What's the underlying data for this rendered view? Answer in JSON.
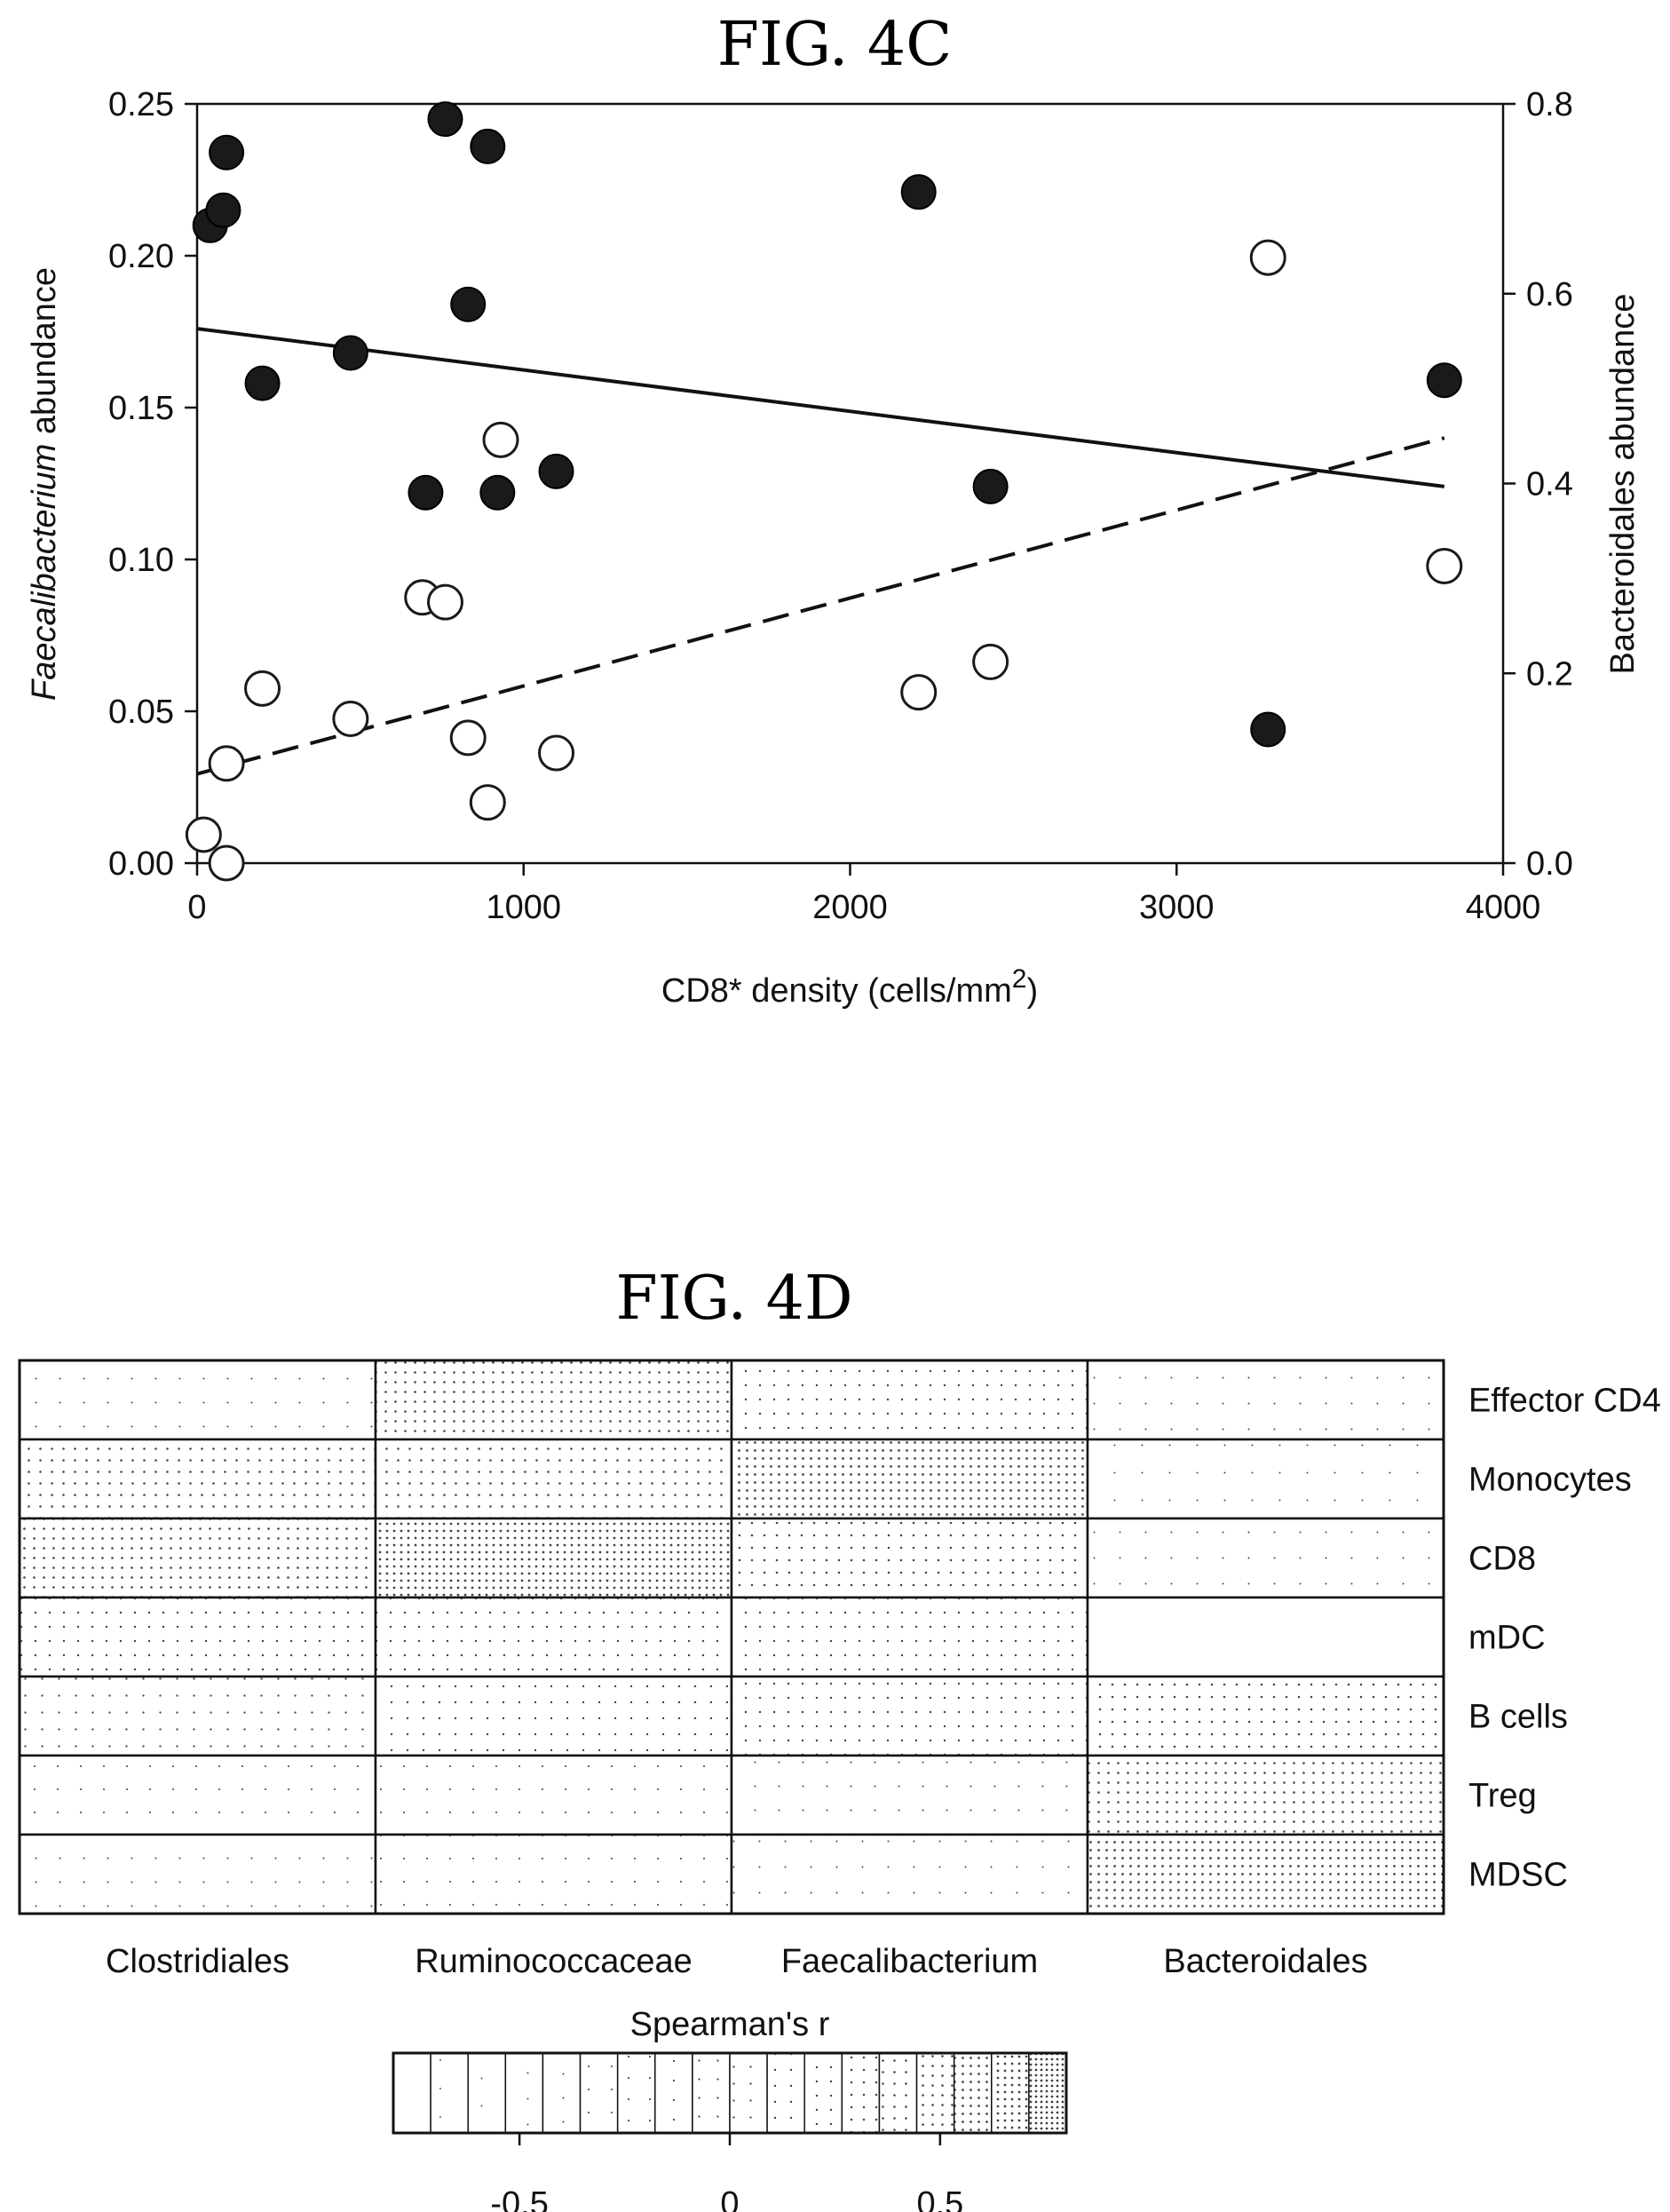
{
  "chart_data": [
    {
      "type": "scatter",
      "title": "FIG. 4C",
      "xlabel": "CD8* density (cells/mm",
      "xlabel_sup": "2",
      "xlabel_end": ")",
      "ylabel_italic": "Faecalibacterium",
      "ylabel_rest": " abundance",
      "y2label": "Bacteroidales abundance",
      "xlim": [
        0,
        4000
      ],
      "ylim": [
        0,
        0.25
      ],
      "y2lim": [
        0,
        0.8
      ],
      "xticks": [
        0,
        1000,
        2000,
        3000,
        4000
      ],
      "xtick_labels": [
        "0",
        "1000",
        "2000",
        "3000",
        "4000"
      ],
      "yticks": [
        0,
        0.05,
        0.1,
        0.15,
        0.2,
        0.25
      ],
      "ytick_labels": [
        "0.00",
        "0.05",
        "0.10",
        "0.15",
        "0.20",
        "0.25"
      ],
      "y2ticks": [
        0,
        0.2,
        0.4,
        0.6,
        0.8
      ],
      "y2tick_labels": [
        "0.0",
        "0.2",
        "0.4",
        "0.6",
        "0.8"
      ],
      "grid": false,
      "series": [
        {
          "marker": "filled",
          "axis": "left",
          "color": "#1a1a1a",
          "x": [
            40,
            80,
            90,
            200,
            470,
            700,
            760,
            830,
            890,
            920,
            1100,
            2210,
            2430,
            3280,
            3820
          ],
          "y": [
            0.21,
            0.215,
            0.234,
            0.158,
            0.168,
            0.122,
            0.245,
            0.184,
            0.236,
            0.122,
            0.129,
            0.221,
            0.124,
            0.044,
            0.159
          ]
        },
        {
          "marker": "open",
          "axis": "right",
          "color": "#1a1a1a",
          "x": [
            20,
            90,
            90,
            200,
            470,
            690,
            760,
            830,
            890,
            930,
            1100,
            2210,
            2430,
            3280,
            3820
          ],
          "y": [
            0.03,
            0.0,
            0.105,
            0.184,
            0.152,
            0.28,
            0.275,
            0.132,
            0.064,
            0.446,
            0.116,
            0.18,
            0.212,
            0.638,
            0.313
          ]
        }
      ],
      "trendlines": [
        {
          "style": "solid",
          "axis": "left",
          "x": [
            0,
            3820
          ],
          "y": [
            0.176,
            0.124
          ]
        },
        {
          "style": "dashed",
          "axis": "right",
          "x": [
            0,
            3820
          ],
          "y": [
            0.094,
            0.448
          ]
        }
      ]
    },
    {
      "type": "heatmap",
      "title": "FIG. 4D",
      "columns": [
        "Clostridiales",
        "Ruminococcaceae",
        "Faecalibacterium",
        "Bacteroidales"
      ],
      "rows": [
        "Effector CD4",
        "Monocytes",
        "CD8",
        "mDC",
        "B cells",
        "Treg",
        "MDSC"
      ],
      "values": [
        [
          -0.45,
          0.5,
          0.2,
          -0.55
        ],
        [
          0.45,
          0.4,
          0.6,
          -0.6
        ],
        [
          0.5,
          0.7,
          0.35,
          -0.55
        ],
        [
          0.2,
          0.2,
          0.25,
          -0.8
        ],
        [
          0.0,
          0.1,
          0.2,
          0.3
        ],
        [
          -0.3,
          -0.3,
          -0.4,
          0.55
        ],
        [
          -0.4,
          -0.35,
          -0.5,
          0.65
        ]
      ],
      "colorbar": {
        "label": "Spearman's r",
        "min": -0.8,
        "max": 0.8,
        "ticks": [
          -0.5,
          0,
          0.5
        ],
        "tick_labels": [
          "-0.5",
          "0",
          "0.5"
        ],
        "steps": 18
      }
    }
  ]
}
